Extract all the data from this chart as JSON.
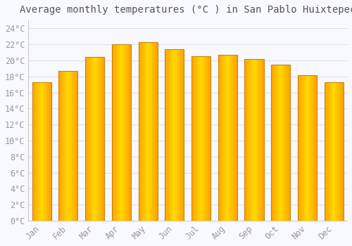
{
  "title": "Average monthly temperatures (°C ) in San Pablo Huixtepec",
  "months": [
    "Jan",
    "Feb",
    "Mar",
    "Apr",
    "May",
    "Jun",
    "Jul",
    "Aug",
    "Sep",
    "Oct",
    "Nov",
    "Dec"
  ],
  "values": [
    17.3,
    18.7,
    20.4,
    22.0,
    22.3,
    21.4,
    20.5,
    20.7,
    20.2,
    19.5,
    18.2,
    17.3
  ],
  "bar_color_center": "#FFDA00",
  "bar_color_edge": "#FFA000",
  "bar_border_color": "#C8860A",
  "background_color": "#F8F8FF",
  "grid_color": "#E0E0E8",
  "tick_label_color": "#999999",
  "title_color": "#555555",
  "ylim": [
    0,
    25
  ],
  "yticks": [
    0,
    2,
    4,
    6,
    8,
    10,
    12,
    14,
    16,
    18,
    20,
    22,
    24
  ],
  "title_fontsize": 10,
  "tick_fontsize": 8.5
}
